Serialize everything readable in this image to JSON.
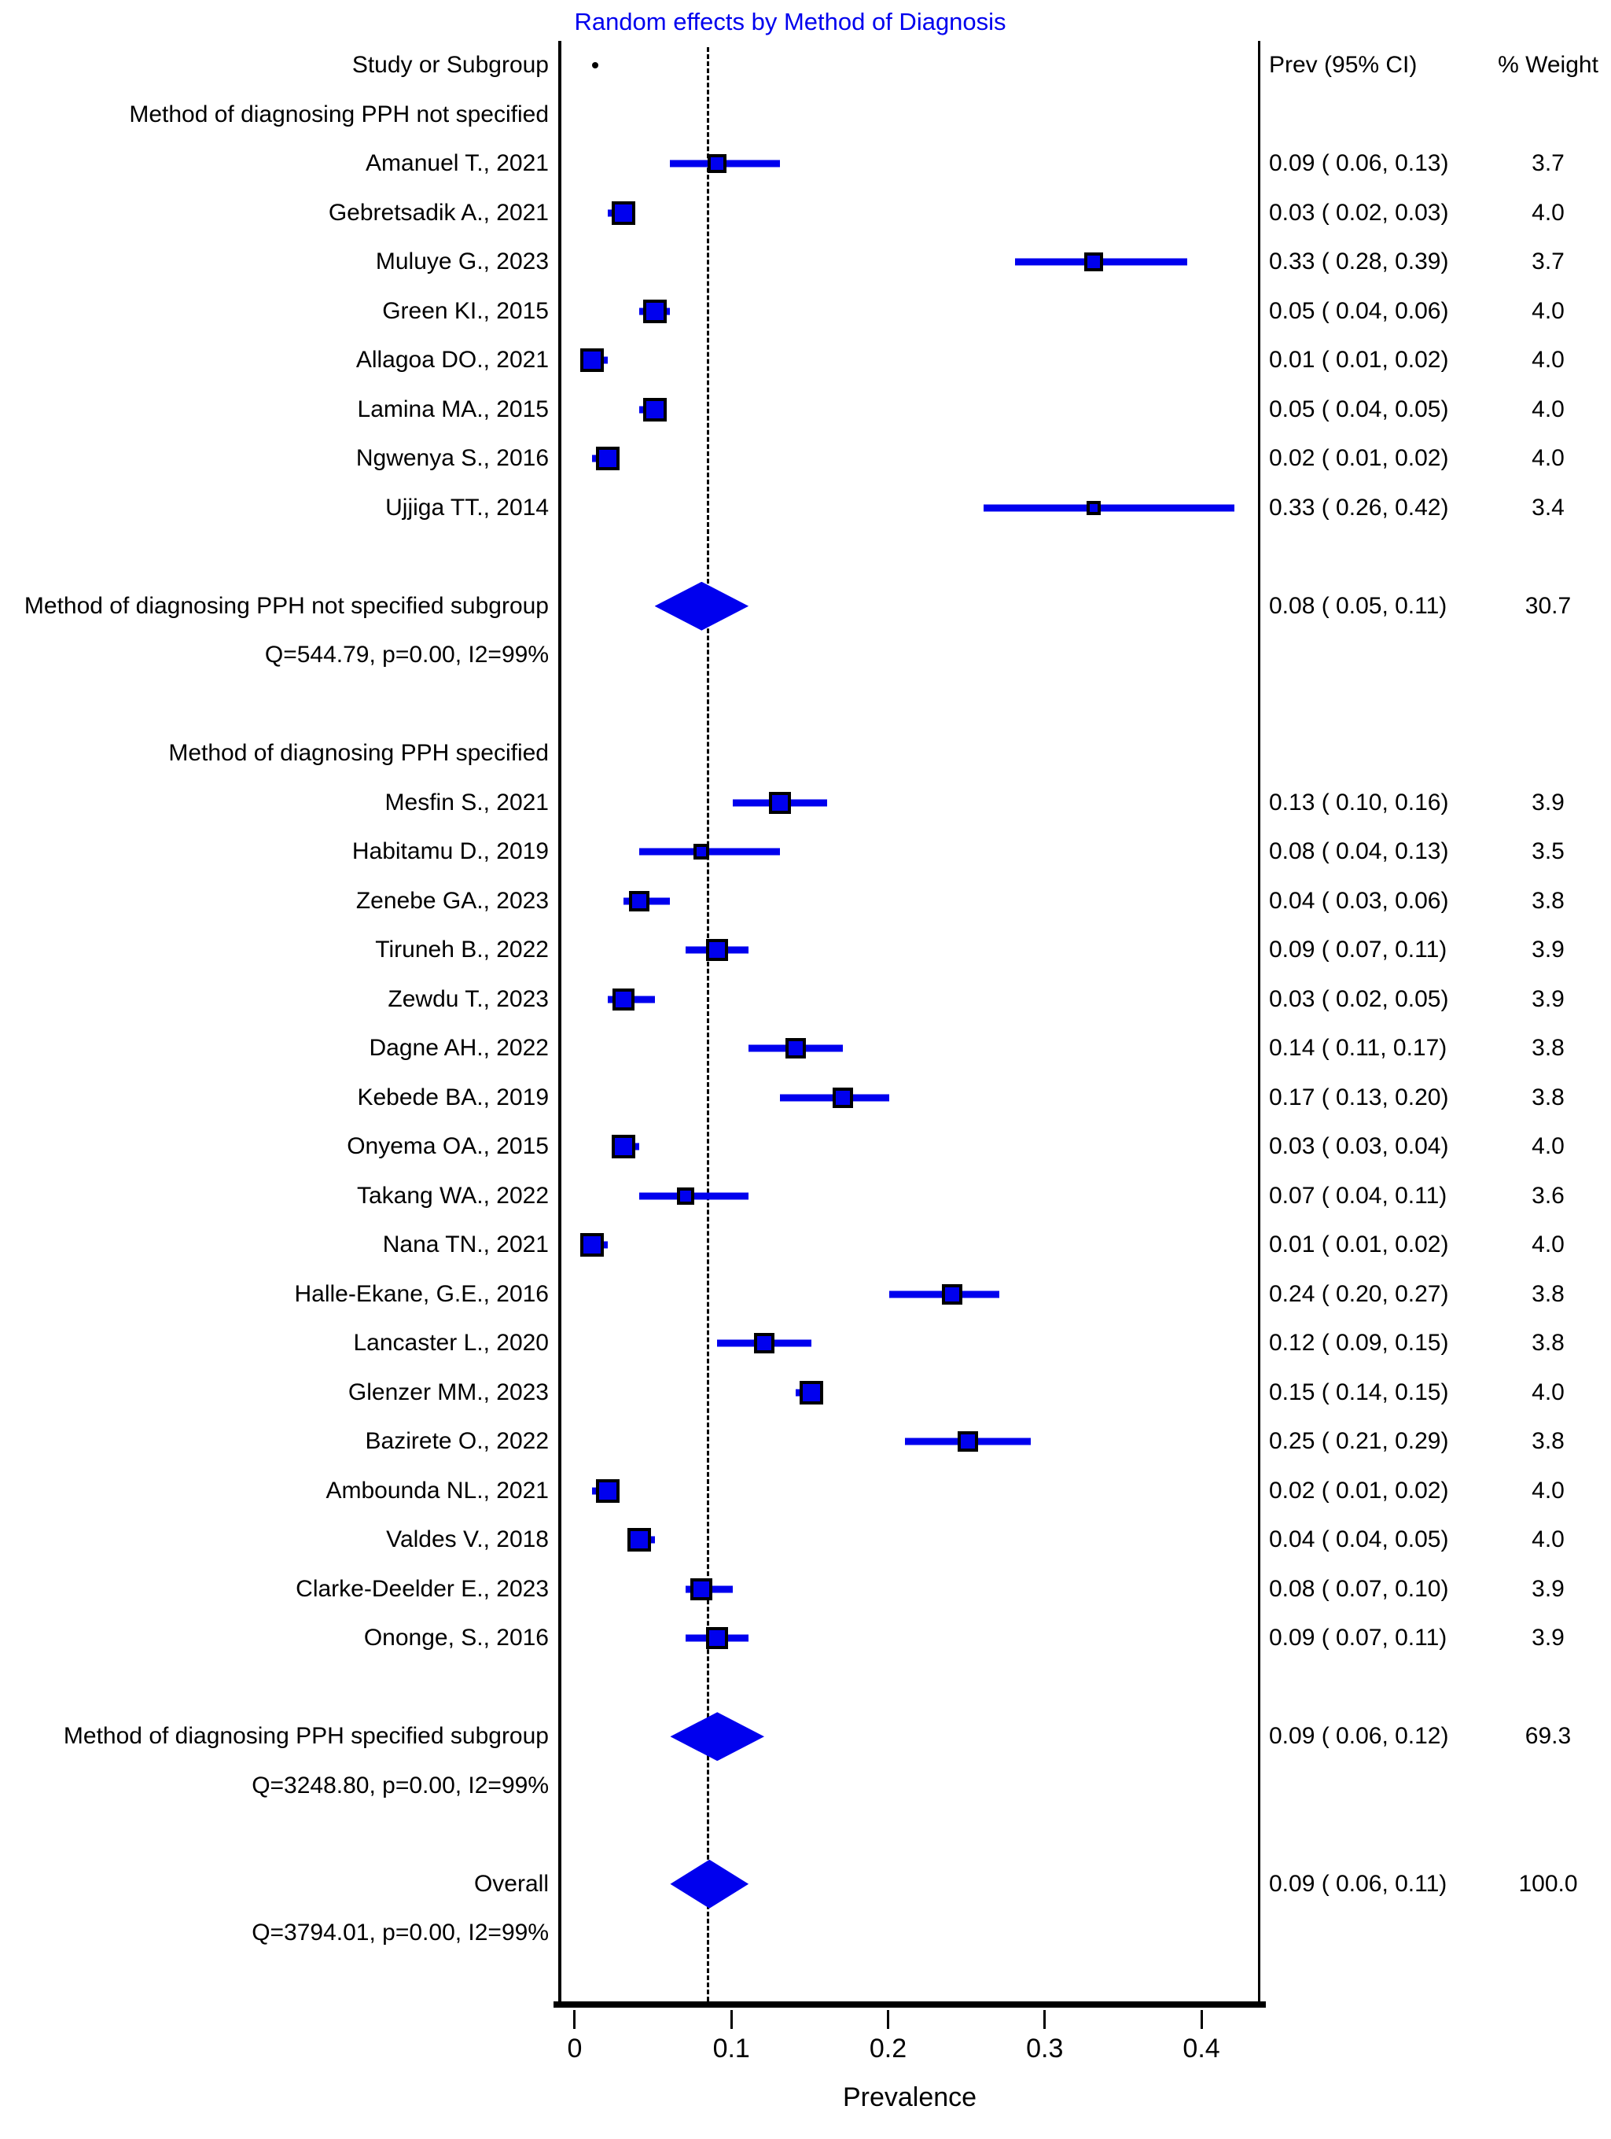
{
  "chart_data": {
    "type": "forest",
    "title": "Random effects by Method of Diagnosis",
    "xlabel": "Prevalence",
    "xticks": [
      0,
      0.1,
      0.2,
      0.3,
      0.4
    ],
    "xlim": [
      -0.0105,
      0.4371
    ],
    "reference_line": 0.085,
    "grid": false,
    "header_point": 0.012,
    "columns": {
      "study": "Study or Subgroup",
      "prev": "Prev (95% CI)",
      "weight": "% Weight"
    },
    "colors": {
      "marker": "#0000ee",
      "title": "#0000ee",
      "axis": "#000000"
    },
    "groups": [
      {
        "label": "Method of diagnosing PPH not specified",
        "studies": [
          {
            "label": "Amanuel T., 2021",
            "prev": 0.09,
            "lo": 0.06,
            "hi": 0.13,
            "weight": 3.7
          },
          {
            "label": "Gebretsadik A., 2021",
            "prev": 0.03,
            "lo": 0.02,
            "hi": 0.03,
            "weight": 4.0
          },
          {
            "label": "Muluye G., 2023",
            "prev": 0.33,
            "lo": 0.28,
            "hi": 0.39,
            "weight": 3.7
          },
          {
            "label": "Green KI., 2015",
            "prev": 0.05,
            "lo": 0.04,
            "hi": 0.06,
            "weight": 4.0
          },
          {
            "label": "Allagoa DO., 2021",
            "prev": 0.01,
            "lo": 0.01,
            "hi": 0.02,
            "weight": 4.0
          },
          {
            "label": "Lamina MA., 2015",
            "prev": 0.05,
            "lo": 0.04,
            "hi": 0.05,
            "weight": 4.0
          },
          {
            "label": "Ngwenya S., 2016",
            "prev": 0.02,
            "lo": 0.01,
            "hi": 0.02,
            "weight": 4.0
          },
          {
            "label": "Ujjiga TT., 2014",
            "prev": 0.33,
            "lo": 0.26,
            "hi": 0.42,
            "weight": 3.4
          }
        ],
        "summary": {
          "label": "Method of diagnosing PPH not specified subgroup",
          "prev": 0.08,
          "lo": 0.05,
          "hi": 0.11,
          "weight": 30.7
        },
        "heterogeneity": "Q=544.79, p=0.00, I2=99%"
      },
      {
        "label": "Method of diagnosing PPH specified",
        "studies": [
          {
            "label": "Mesfin S., 2021",
            "prev": 0.13,
            "lo": 0.1,
            "hi": 0.16,
            "weight": 3.9
          },
          {
            "label": "Habitamu D., 2019",
            "prev": 0.08,
            "lo": 0.04,
            "hi": 0.13,
            "weight": 3.5
          },
          {
            "label": "Zenebe GA., 2023",
            "prev": 0.04,
            "lo": 0.03,
            "hi": 0.06,
            "weight": 3.8
          },
          {
            "label": "Tiruneh B., 2022",
            "prev": 0.09,
            "lo": 0.07,
            "hi": 0.11,
            "weight": 3.9
          },
          {
            "label": "Zewdu T., 2023",
            "prev": 0.03,
            "lo": 0.02,
            "hi": 0.05,
            "weight": 3.9
          },
          {
            "label": "Dagne AH., 2022",
            "prev": 0.14,
            "lo": 0.11,
            "hi": 0.17,
            "weight": 3.8
          },
          {
            "label": "Kebede BA., 2019",
            "prev": 0.17,
            "lo": 0.13,
            "hi": 0.2,
            "weight": 3.8
          },
          {
            "label": "Onyema OA., 2015",
            "prev": 0.03,
            "lo": 0.03,
            "hi": 0.04,
            "weight": 4.0
          },
          {
            "label": "Takang WA., 2022",
            "prev": 0.07,
            "lo": 0.04,
            "hi": 0.11,
            "weight": 3.6
          },
          {
            "label": "Nana TN., 2021",
            "prev": 0.01,
            "lo": 0.01,
            "hi": 0.02,
            "weight": 4.0
          },
          {
            "label": "Halle-Ekane, G.E., 2016",
            "prev": 0.24,
            "lo": 0.2,
            "hi": 0.27,
            "weight": 3.8
          },
          {
            "label": "Lancaster L., 2020",
            "prev": 0.12,
            "lo": 0.09,
            "hi": 0.15,
            "weight": 3.8
          },
          {
            "label": "Glenzer MM., 2023",
            "prev": 0.15,
            "lo": 0.14,
            "hi": 0.15,
            "weight": 4.0
          },
          {
            "label": "Bazirete O., 2022",
            "prev": 0.25,
            "lo": 0.21,
            "hi": 0.29,
            "weight": 3.8
          },
          {
            "label": "Ambounda NL., 2021",
            "prev": 0.02,
            "lo": 0.01,
            "hi": 0.02,
            "weight": 4.0
          },
          {
            "label": "Valdes V., 2018",
            "prev": 0.04,
            "lo": 0.04,
            "hi": 0.05,
            "weight": 4.0
          },
          {
            "label": "Clarke-Deelder E., 2023",
            "prev": 0.08,
            "lo": 0.07,
            "hi": 0.1,
            "weight": 3.9
          },
          {
            "label": "Ononge, S., 2016",
            "prev": 0.09,
            "lo": 0.07,
            "hi": 0.11,
            "weight": 3.9
          }
        ],
        "summary": {
          "label": "Method of diagnosing PPH specified subgroup",
          "prev": 0.09,
          "lo": 0.06,
          "hi": 0.12,
          "weight": 69.3
        },
        "heterogeneity": "Q=3248.80, p=0.00, I2=99%"
      }
    ],
    "overall": {
      "label": "Overall",
      "prev": 0.09,
      "lo": 0.06,
      "hi": 0.11,
      "weight": 100.0,
      "heterogeneity": "Q=3794.01, p=0.00, I2=99%"
    }
  }
}
